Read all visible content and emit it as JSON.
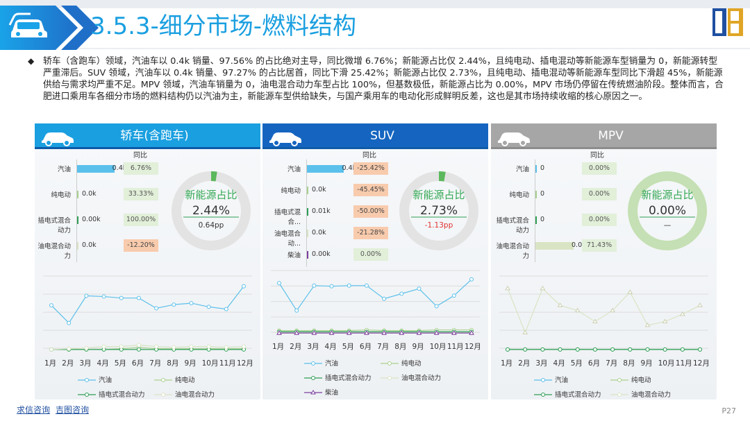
{
  "header": {
    "title": "3.5.3-细分市场-燃料结构"
  },
  "summary": "轿车（含跑车）领域，汽油车以 0.4k 销量、97.56% 的占比绝对主导，同比微增 6.76%；新能源占比仅 2.44%，且纯电动、插电混动等新能源车型销量为 0，新能源转型严重滞后。SUV 领域，汽油车以 0.4k 销量、97.27% 的占比居首，同比下滑 25.42%；新能源占比仅 2.73%，且纯电动、插电混动等新能源车型同比下滑超 45%，新能源供给与需求均严重不足。MPV 领域，汽油车销量为 0，油电混合动力车型占比 100%，但基数极低，新能源占比为 0.00%，MPV 市场仍停留在传统燃油阶段。整体而言，合肥进口乘用车各细分市场的燃料结构仍以汽油为主，新能源车型供给缺失，与国产乘用车的电动化形成鲜明反差，这也是其市场持续收缩的核心原因之一。",
  "panels": [
    {
      "title": "轿车(含跑车)",
      "yoy_header": "同比",
      "rows": [
        {
          "label": "汽油",
          "value": "0.4k",
          "share": 0.9756,
          "yoy": "6.76%",
          "yoy_sign": "pos"
        },
        {
          "label": "纯电动",
          "value": "0.0k",
          "share": 0.0,
          "yoy": "33.33%",
          "yoy_sign": "pos"
        },
        {
          "label": "插电式混合动力",
          "value": "0.00k",
          "share": 0.0,
          "yoy": "100.00%",
          "yoy_sign": "pos"
        },
        {
          "label": "油电混合动力",
          "value": "0.0k",
          "share": 0.0244,
          "yoy": "-12.20%",
          "yoy_sign": "neg"
        }
      ],
      "donut": {
        "title": "新能源占比",
        "value": "2.44%",
        "sub": "0.64pp",
        "share": 0.0244
      },
      "months": [
        "1月",
        "2月",
        "3月",
        "4月",
        "5月",
        "6月",
        "7月",
        "8月",
        "9月",
        "10月",
        "11月",
        "12月"
      ],
      "legend": [
        "汽油",
        "纯电动",
        "插电式混合动力",
        "油电混合动力"
      ],
      "series": [
        [
          0.62,
          0.38,
          0.75,
          0.74,
          0.72,
          0.72,
          0.58,
          0.63,
          0.65,
          0.6,
          0.57,
          0.88
        ],
        [
          0.02,
          0.02,
          0.02,
          0.02,
          0.03,
          0.05,
          0.03,
          0.03,
          0.03,
          0.03,
          0.03,
          0.03
        ],
        [
          0.02,
          0.02,
          0.02,
          0.02,
          0.02,
          0.02,
          0.02,
          0.02,
          0.02,
          0.02,
          0.02,
          0.02
        ],
        [
          0.02,
          0.03,
          0.04,
          0.06,
          0.06,
          0.08,
          0.06,
          0.05,
          0.06,
          0.06,
          0.05,
          0.06
        ]
      ]
    },
    {
      "title": "SUV",
      "yoy_header": "同比",
      "rows": [
        {
          "label": "汽油",
          "value": "0.4k",
          "share": 0.9727,
          "yoy": "-25.42%",
          "yoy_sign": "neg"
        },
        {
          "label": "纯电动",
          "value": "0.0k",
          "share": 0.0,
          "yoy": "-45.45%",
          "yoy_sign": "neg"
        },
        {
          "label": "插电式混合...",
          "value": "0.01k",
          "share": 0.0,
          "yoy": "-50.00%",
          "yoy_sign": "neg"
        },
        {
          "label": "油电混合动...",
          "value": "0.0k",
          "share": 0.0,
          "yoy": "-21.28%",
          "yoy_sign": "neg"
        },
        {
          "label": "柴油",
          "value": "0.00k",
          "share": 0.0,
          "yoy": "0.00%",
          "yoy_sign": "pos"
        }
      ],
      "donut": {
        "title": "新能源占比",
        "value": "2.73%",
        "sub": "-1.13pp",
        "share": 0.0273
      },
      "months": [
        "1月",
        "2月",
        "3月",
        "4月",
        "5月",
        "6月",
        "7月",
        "8月",
        "9月",
        "10月",
        "11月",
        "12月"
      ],
      "legend": [
        "汽油",
        "纯电动",
        "插电式混合动力",
        "油电混合动力",
        "柴油"
      ],
      "series": [
        [
          0.82,
          0.38,
          0.78,
          0.77,
          0.78,
          0.78,
          0.57,
          0.65,
          0.73,
          0.45,
          0.62,
          0.88
        ],
        [
          0.06,
          0.06,
          0.06,
          0.06,
          0.06,
          0.07,
          0.06,
          0.06,
          0.06,
          0.07,
          0.07,
          0.07
        ],
        [
          0.04,
          0.04,
          0.04,
          0.04,
          0.04,
          0.04,
          0.04,
          0.04,
          0.04,
          0.04,
          0.04,
          0.04
        ],
        [
          0.02,
          0.02,
          0.02,
          0.02,
          0.02,
          0.02,
          0.02,
          0.02,
          0.02,
          0.02,
          0.02,
          0.02
        ],
        [
          0.02,
          0.02,
          0.02,
          0.02,
          0.02,
          0.02,
          0.02,
          0.02,
          0.02,
          0.02,
          0.02,
          0.02
        ]
      ]
    },
    {
      "title": "MPV",
      "yoy_header": "同比",
      "rows": [
        {
          "label": "汽油",
          "value": "0",
          "share": 0.0,
          "yoy": "0.00%",
          "yoy_sign": "pos"
        },
        {
          "label": "纯电动",
          "value": "0",
          "share": 0.0,
          "yoy": "0.00%",
          "yoy_sign": "pos"
        },
        {
          "label": "插电式混合动力",
          "value": "0",
          "share": 0.0,
          "yoy": "0.00%",
          "yoy_sign": "pos"
        },
        {
          "label": "油电混合动力",
          "value": "0.0k",
          "share": 1.0,
          "yoy": "71.43%",
          "yoy_sign": "pos"
        }
      ],
      "donut": {
        "title": "新能源占比",
        "value": "0.00%",
        "sub": "—",
        "share": 0.0
      },
      "months": [
        "1月",
        "2月",
        "3月",
        "4月",
        "5月",
        "6月",
        "7月",
        "8月",
        "9月",
        "10月",
        "11月",
        "12月"
      ],
      "legend": [
        "汽油",
        "纯电动",
        "插电式混合动力",
        "油电混合动力"
      ],
      "series": [
        [
          0.02,
          0.02,
          0.02,
          0.02,
          0.02,
          0.02,
          0.02,
          0.02,
          0.02,
          0.02,
          0.02,
          0.02
        ],
        [
          0.02,
          0.02,
          0.02,
          0.02,
          0.02,
          0.02,
          0.02,
          0.02,
          0.02,
          0.02,
          0.02,
          0.02
        ],
        [
          0.02,
          0.02,
          0.02,
          0.02,
          0.02,
          0.02,
          0.02,
          0.02,
          0.02,
          0.02,
          0.02,
          0.02
        ],
        [
          0.85,
          0.25,
          0.85,
          0.62,
          0.55,
          0.4,
          0.55,
          0.8,
          0.35,
          0.4,
          0.5,
          0.62
        ]
      ]
    }
  ],
  "footer": {
    "link1": "求信咨询",
    "link2": "吉图咨询",
    "page": "P27"
  },
  "colors": {
    "accent": "#1a9fe0",
    "suv_header": "#1565c0",
    "mpv_header": "#a6a6a6",
    "gasoline": "#5bc0eb",
    "bev": "#a9d18e",
    "phev": "#2e9e55",
    "hev": "#d9e4c4",
    "diesel": "#7b3fa0"
  }
}
